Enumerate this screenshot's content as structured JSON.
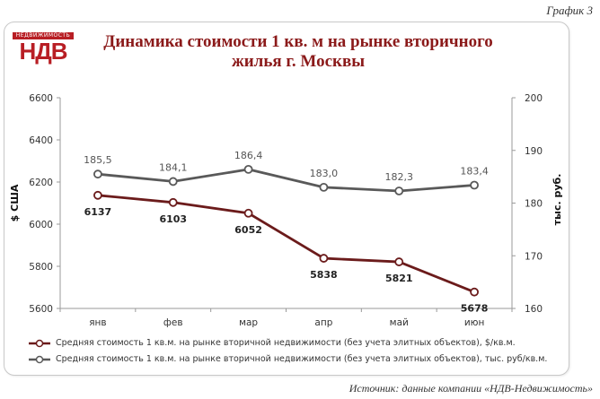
{
  "corner_label": "График 3",
  "logo": {
    "top_text": "НЕДВИЖИМОСТЬ",
    "main_text": "НДВ"
  },
  "title_line1": "Динамика стоимости 1 кв. м на  рынке вторичного",
  "title_line2": "жилья г. Москвы",
  "source": "Источник: данные компании «НДВ-Недвижимость»",
  "colors": {
    "usd_series": "#6b1b1b",
    "rub_series": "#595959",
    "title": "#8b1a1a",
    "logo": "#b81e24"
  },
  "chart_data": {
    "type": "line",
    "categories": [
      "янв",
      "фев",
      "мар",
      "апр",
      "май",
      "июн"
    ],
    "y_left": {
      "label": "$ США",
      "min": 5600,
      "max": 6600,
      "ticks": [
        5600,
        5800,
        6000,
        6200,
        6400,
        6600
      ]
    },
    "y_right": {
      "label": "тыс. руб.",
      "min": 160,
      "max": 200,
      "ticks": [
        160,
        170,
        180,
        190,
        200
      ]
    },
    "grid": false,
    "legend_position": "bottom",
    "series": [
      {
        "name": "Средняя стоимость 1 кв.м. на рынке вторичной недвижимости (без учета элитных объектов), $/кв.м.",
        "axis": "left",
        "values": [
          6137,
          6103,
          6052,
          5838,
          5821,
          5678
        ],
        "labels": [
          "6137",
          "6103",
          "6052",
          "5838",
          "5821",
          "5678"
        ],
        "color": "#6b1b1b"
      },
      {
        "name": "Средняя стоимость 1 кв.м. на рынке вторичной недвижимости (без учета элитных объектов), тыс. руб/кв.м.",
        "axis": "right",
        "values": [
          185.5,
          184.1,
          186.4,
          183.0,
          182.3,
          183.4
        ],
        "labels": [
          "185,5",
          "184,1",
          "186,4",
          "183,0",
          "182,3",
          "183,4"
        ],
        "color": "#595959"
      }
    ]
  }
}
